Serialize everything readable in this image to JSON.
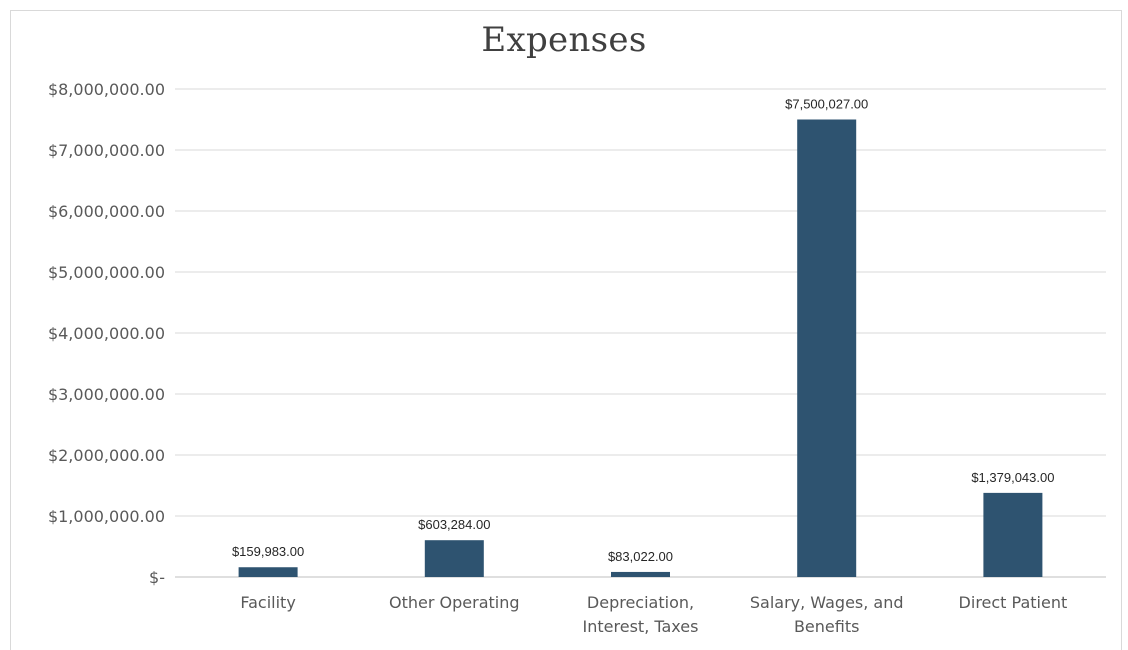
{
  "chart_data": {
    "type": "bar",
    "title": "Expenses",
    "categories": [
      [
        "Facility"
      ],
      [
        "Other Operating"
      ],
      [
        "Depreciation,",
        "Interest, Taxes"
      ],
      [
        "Salary, Wages, and",
        "Benefits"
      ],
      [
        "Direct Patient"
      ]
    ],
    "values": [
      159983,
      603284,
      83022,
      7500027,
      1379043
    ],
    "data_labels": [
      "$159,983.00",
      "$603,284.00",
      "$83,022.00",
      "$7,500,027.00",
      "$1,379,043.00"
    ],
    "ylim": [
      0,
      8000000
    ],
    "y_ticks": [
      0,
      1000000,
      2000000,
      3000000,
      4000000,
      5000000,
      6000000,
      7000000,
      8000000
    ],
    "y_tick_labels": [
      "$-",
      "$1,000,000.00",
      "$2,000,000.00",
      "$3,000,000.00",
      "$4,000,000.00",
      "$5,000,000.00",
      "$6,000,000.00",
      "$7,000,000.00",
      "$8,000,000.00"
    ],
    "grid": true,
    "bar_color": "#2e5370",
    "grid_color": "#d9d9d9",
    "axis_color": "#bfbfbf"
  }
}
